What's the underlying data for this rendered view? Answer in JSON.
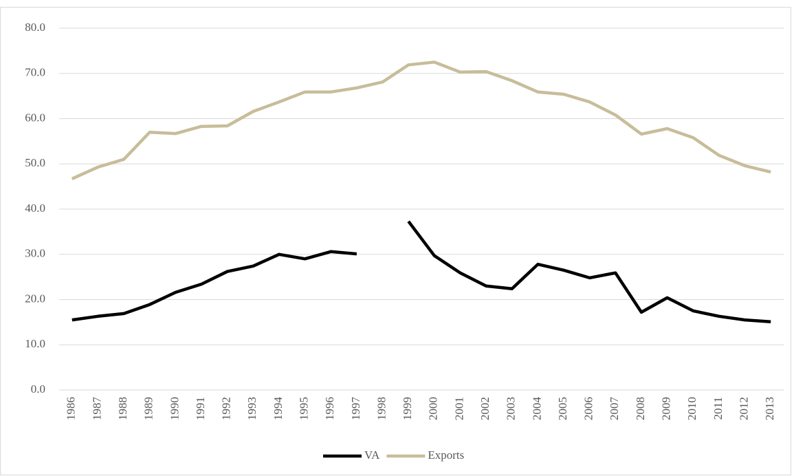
{
  "chart_data": {
    "type": "line",
    "categories": [
      "1986",
      "1987",
      "1988",
      "1989",
      "1990",
      "1991",
      "1992",
      "1993",
      "1994",
      "1995",
      "1996",
      "1997",
      "1998",
      "1999",
      "2000",
      "2001",
      "2002",
      "2003",
      "2004",
      "2005",
      "2006",
      "2007",
      "2008",
      "2009",
      "2010",
      "2011",
      "2012",
      "2013"
    ],
    "series": [
      {
        "name": "VA",
        "color": "#000000",
        "values": [
          15.5,
          16.3,
          16.9,
          18.9,
          21.6,
          23.4,
          26.2,
          27.4,
          30.0,
          29.0,
          30.6,
          30.1,
          null,
          37.3,
          29.7,
          25.9,
          23.0,
          22.4,
          27.8,
          26.5,
          24.8,
          25.9,
          17.2,
          20.4,
          17.5,
          16.3,
          15.5,
          15.1
        ]
      },
      {
        "name": "Exports",
        "color": "#c8bd9a",
        "values": [
          46.7,
          49.3,
          51.0,
          57.0,
          56.7,
          58.3,
          58.4,
          61.6,
          63.7,
          65.9,
          65.9,
          66.8,
          68.1,
          71.9,
          72.5,
          70.3,
          70.4,
          68.4,
          65.9,
          65.4,
          63.7,
          60.8,
          56.6,
          57.8,
          55.8,
          51.9,
          49.6,
          48.2
        ]
      }
    ],
    "ylim": [
      0,
      80
    ],
    "yticks": [
      {
        "value": 0,
        "label": "0.0"
      },
      {
        "value": 10,
        "label": "10.0"
      },
      {
        "value": 20,
        "label": "20.0"
      },
      {
        "value": 30,
        "label": "30.0"
      },
      {
        "value": 40,
        "label": "40.0"
      },
      {
        "value": 50,
        "label": "50.0"
      },
      {
        "value": 60,
        "label": "60.0"
      },
      {
        "value": 70,
        "label": "70.0"
      },
      {
        "value": 80,
        "label": "80.0"
      }
    ],
    "grid": true,
    "legend": "bottom"
  }
}
